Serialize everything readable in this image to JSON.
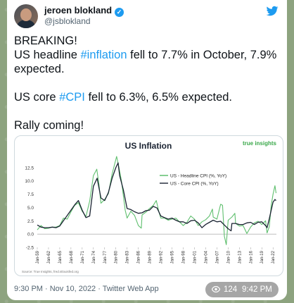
{
  "tweet": {
    "author": "jeroen blokland",
    "handle": "@jsblokland",
    "line1": "BREAKING!",
    "line2_a": "US headline ",
    "line2_tag": "#inflation",
    "line2_b": " fell to 7.7% in October, 7.9% expected.",
    "line3_a": "US core ",
    "line3_tag": "#CPI",
    "line3_b": " fell to 6.3%, 6.5% expected.",
    "line4": "Rally coming!",
    "timestamp": "9:30 PM · Nov 10, 2022 · Twitter Web App"
  },
  "overlay": {
    "views": "124",
    "time": "9:42 PM"
  },
  "colors": {
    "link": "#1d9bf0",
    "headline": "#5fbf6e",
    "core": "#1a2332"
  },
  "icons": {
    "verified": "verified-badge-icon",
    "twitter": "twitter-bird-icon",
    "views": "eye-icon"
  },
  "chart_data": {
    "type": "line",
    "title": "US Inflation",
    "brand": "true insights",
    "source": "Source: True Insights, fred.stlouisfed.org",
    "legend_position": "top-right",
    "grid": false,
    "ylim": [
      -2.5,
      15
    ],
    "yticks": [
      "12.5",
      "10.0",
      "7.5",
      "5.0",
      "2.5",
      "0.0",
      "-2.5"
    ],
    "yvalues": [
      12.5,
      10.0,
      7.5,
      5.0,
      2.5,
      0.0,
      -2.5
    ],
    "xlim": [
      1959,
      2022.9
    ],
    "xticks": [
      "Jan-59",
      "Jan-62",
      "Jan-65",
      "Jan-68",
      "Jan-71",
      "Jan-74",
      "Jan-77",
      "Jan-80",
      "Jan-83",
      "Jan-86",
      "Jan-89",
      "Jan-92",
      "Jan-95",
      "Jan-98",
      "Jan-01",
      "Jan-04",
      "Jan-07",
      "Jan-10",
      "Jan-13",
      "Jan-16",
      "Jan-19",
      "Jan-22"
    ],
    "xtick_years": [
      1959,
      1962,
      1965,
      1968,
      1971,
      1974,
      1977,
      1980,
      1983,
      1986,
      1989,
      1992,
      1995,
      1998,
      2001,
      2004,
      2007,
      2010,
      2013,
      2016,
      2019,
      2022
    ],
    "series": [
      {
        "name": "US - Headline CPI (%, YoY)",
        "color": "#5fbf6e",
        "x": [
          1959,
          1960,
          1961,
          1962,
          1963,
          1964,
          1965,
          1966,
          1967,
          1968,
          1969,
          1970,
          1971,
          1972,
          1973,
          1974,
          1974.9,
          1975.5,
          1976,
          1977,
          1978,
          1979,
          1980.2,
          1980.8,
          1981.5,
          1982.5,
          1983,
          1984,
          1985,
          1986,
          1986.8,
          1987,
          1988,
          1989,
          1990,
          1990.8,
          1991.5,
          1992,
          1993,
          1994,
          1995,
          1996,
          1997,
          1998,
          1999,
          2000,
          2001,
          2002,
          2003,
          2004,
          2005,
          2005.8,
          2006,
          2007,
          2008,
          2008.5,
          2009,
          2009.5,
          2010,
          2011,
          2011.8,
          2012,
          2013,
          2014,
          2015,
          2016,
          2017,
          2018,
          2019,
          2020,
          2020.4,
          2021,
          2021.5,
          2022,
          2022.5,
          2022.8
        ],
        "y": [
          0.8,
          1.6,
          1.0,
          1.1,
          1.3,
          1.3,
          1.6,
          3.0,
          2.8,
          4.2,
          5.4,
          5.9,
          4.3,
          3.3,
          6.2,
          11.0,
          12.2,
          9.2,
          5.8,
          6.5,
          7.6,
          11.3,
          14.6,
          12.6,
          10.0,
          4.5,
          3.0,
          4.3,
          3.5,
          1.6,
          1.1,
          3.6,
          4.1,
          4.8,
          5.4,
          6.3,
          4.2,
          3.0,
          3.0,
          2.6,
          2.8,
          3.0,
          2.3,
          1.6,
          2.2,
          3.4,
          2.8,
          1.6,
          2.3,
          2.7,
          3.4,
          4.7,
          3.2,
          2.8,
          5.6,
          5.4,
          -0.4,
          -2.0,
          2.6,
          3.2,
          3.9,
          2.0,
          1.5,
          1.6,
          0.1,
          1.3,
          2.1,
          2.4,
          1.8,
          2.5,
          0.2,
          1.4,
          5.4,
          7.5,
          9.1,
          7.7
        ]
      },
      {
        "name": "US - Core CPI (%, YoY)",
        "color": "#1a2332",
        "x": [
          1959,
          1960,
          1961,
          1962,
          1963,
          1964,
          1965,
          1966,
          1967,
          1968,
          1969,
          1970,
          1971,
          1972,
          1973,
          1974,
          1975,
          1976,
          1977,
          1978,
          1979,
          1980,
          1980.6,
          1981,
          1982,
          1983,
          1984,
          1985,
          1986,
          1987,
          1988,
          1989,
          1990,
          1991,
          1992,
          1993,
          1994,
          1995,
          1996,
          1997,
          1998,
          1999,
          2000,
          2001,
          2002,
          2003,
          2004,
          2005,
          2006,
          2007,
          2008,
          2009,
          2010,
          2010.8,
          2011,
          2012,
          2013,
          2014,
          2015,
          2016,
          2017,
          2018,
          2019,
          2020,
          2020.4,
          2021,
          2021.5,
          2022,
          2022.5,
          2022.8
        ],
        "y": [
          1.7,
          1.3,
          1.2,
          1.2,
          1.3,
          1.2,
          1.5,
          2.5,
          3.5,
          4.5,
          5.5,
          6.3,
          4.5,
          3.1,
          3.4,
          9.0,
          10.5,
          6.8,
          6.3,
          7.8,
          10.5,
          12.5,
          13.4,
          11.0,
          8.3,
          4.8,
          4.6,
          4.2,
          3.9,
          4.0,
          4.4,
          4.5,
          5.2,
          4.9,
          3.4,
          3.1,
          2.8,
          3.0,
          2.6,
          2.3,
          2.3,
          2.0,
          2.5,
          2.6,
          2.1,
          1.2,
          1.8,
          2.2,
          2.6,
          2.3,
          2.4,
          1.7,
          1.0,
          0.6,
          2.0,
          2.0,
          1.8,
          1.8,
          2.1,
          2.2,
          1.8,
          2.2,
          2.3,
          1.6,
          1.2,
          2.9,
          4.5,
          6.0,
          6.5,
          6.3
        ]
      }
    ]
  }
}
